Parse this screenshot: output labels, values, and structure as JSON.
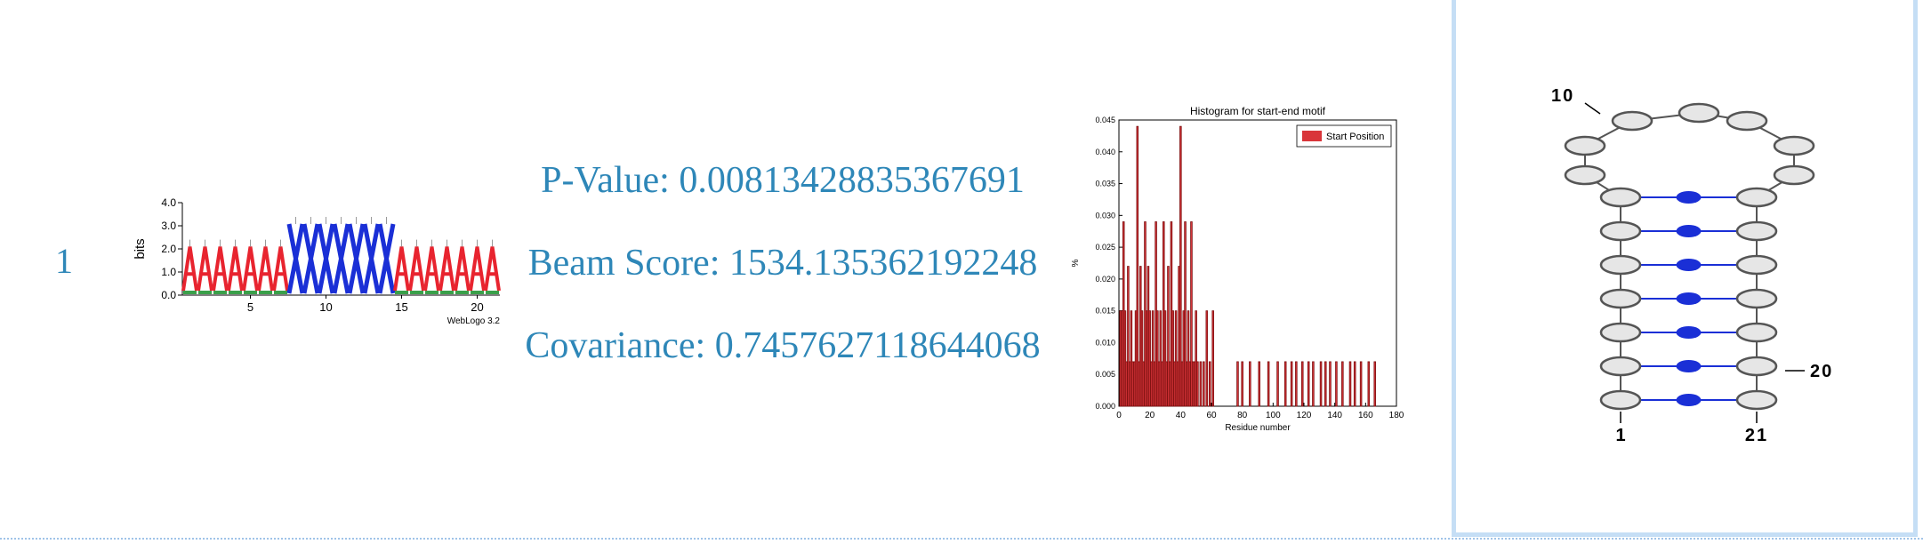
{
  "row": {
    "rank": "1",
    "p_value_text": "P-Value: 0.00813428835367691",
    "beam_score_text": "Beam Score: 1534.135362192248",
    "covariance_text": "Covariance: 0.7457627118644068"
  },
  "logo": {
    "ylabel": "bits",
    "yticks": [
      "4.0",
      "3.0",
      "2.0",
      "1.0",
      "0.0"
    ],
    "xticks": [
      "5",
      "10",
      "15",
      "20"
    ],
    "footer": "WebLogo 3.2",
    "letters": [
      "A",
      "A",
      "A",
      "A",
      "A",
      "A",
      "A",
      "X",
      "X",
      "X",
      "X",
      "X",
      "X",
      "X",
      "A",
      "A",
      "A",
      "A",
      "A",
      "A",
      "A"
    ],
    "colors": {
      "A": "#e8242f",
      "X": "#1a2fd6"
    }
  },
  "chart_data": {
    "type": "bar",
    "title": "Histogram for start-end motif",
    "xlabel": "Residue number",
    "ylabel": "%",
    "xlim": [
      0,
      180
    ],
    "ylim": [
      0,
      0.045
    ],
    "xticks": [
      0,
      20,
      40,
      60,
      80,
      100,
      120,
      140,
      160,
      180
    ],
    "yticks": [
      "0.000",
      "0.005",
      "0.010",
      "0.015",
      "0.020",
      "0.025",
      "0.030",
      "0.035",
      "0.040",
      "0.045"
    ],
    "legend": "top-right",
    "bar_color": "#d9353a",
    "series": [
      {
        "name": "Start Position",
        "x": [
          1,
          2,
          3,
          4,
          5,
          6,
          7,
          8,
          9,
          10,
          11,
          12,
          13,
          14,
          15,
          16,
          17,
          18,
          19,
          20,
          21,
          22,
          23,
          24,
          25,
          26,
          27,
          28,
          29,
          30,
          31,
          32,
          33,
          34,
          35,
          36,
          37,
          38,
          39,
          40,
          41,
          42,
          43,
          44,
          45,
          46,
          47,
          48,
          49,
          50,
          51,
          53,
          55,
          57,
          59,
          61,
          77,
          80,
          85,
          91,
          97,
          103,
          108,
          112,
          115,
          119,
          123,
          126,
          131,
          134,
          137,
          141,
          145,
          150,
          153,
          157,
          162,
          166
        ],
        "values": [
          0.015,
          0.015,
          0.029,
          0.015,
          0.007,
          0.022,
          0.007,
          0.015,
          0.007,
          0.007,
          0.015,
          0.044,
          0.007,
          0.022,
          0.015,
          0.007,
          0.029,
          0.015,
          0.022,
          0.015,
          0.007,
          0.015,
          0.007,
          0.029,
          0.015,
          0.007,
          0.015,
          0.007,
          0.029,
          0.015,
          0.007,
          0.022,
          0.007,
          0.029,
          0.015,
          0.007,
          0.015,
          0.007,
          0.022,
          0.044,
          0.007,
          0.015,
          0.029,
          0.007,
          0.015,
          0.007,
          0.029,
          0.007,
          0.007,
          0.015,
          0.007,
          0.007,
          0.007,
          0.015,
          0.007,
          0.015,
          0.007,
          0.007,
          0.007,
          0.007,
          0.007,
          0.007,
          0.007,
          0.007,
          0.007,
          0.007,
          0.007,
          0.007,
          0.007,
          0.007,
          0.007,
          0.007,
          0.007,
          0.007,
          0.007,
          0.007,
          0.007,
          0.007
        ]
      }
    ]
  },
  "structure": {
    "labels": {
      "top": "10",
      "right": "20",
      "bottom_left": "1",
      "bottom_right": "21"
    },
    "node_fill": "#e6e6e6",
    "pair_color": "#1a2fd6"
  }
}
